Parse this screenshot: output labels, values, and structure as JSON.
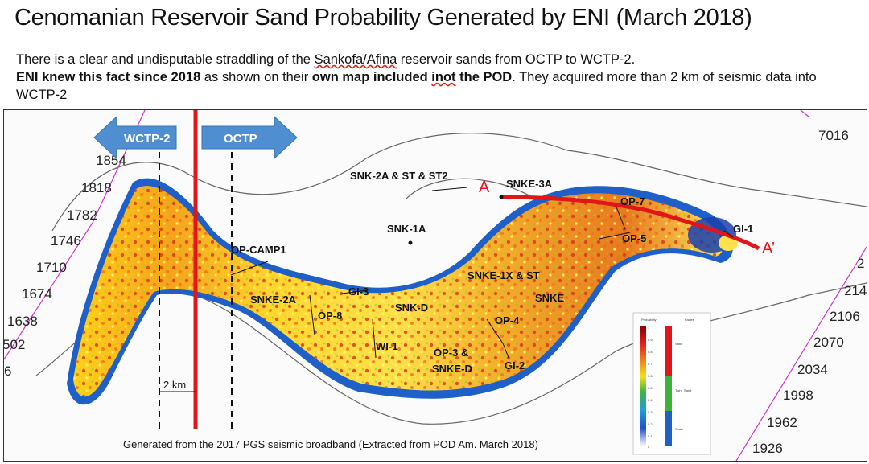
{
  "title": "Cenomanian Reservoir Sand Probability Generated by ENI (March 2018)",
  "description": {
    "line1_pre": "There is a clear and undisputable straddling of the ",
    "line1_link": "Sankofa/Afina",
    "line1_post": " reservoir sands from OCTP to WCTP-2.",
    "line2_bold1": "ENI knew this fact since 2018",
    "line2_mid": " as shown on their ",
    "line2_bold2a": "own map included ",
    "line2_bold2b": "inot",
    "line2_bold2c": " the POD",
    "line2_post": ".  They acquired more than 2 km of seismic data into WCTP-2"
  },
  "blocks": {
    "left_arrow": "WCTP-2",
    "right_arrow": "OCTP",
    "distance": "2 km"
  },
  "section": {
    "start": "A",
    "end": "A’"
  },
  "contours_left": [
    "1854",
    "1818",
    "1782",
    "1746",
    "1710",
    "1674",
    "1638",
    "502",
    "6"
  ],
  "contours_right": [
    "7016",
    "2",
    "214",
    "2106",
    "2070",
    "2034",
    "1998",
    "1962",
    "1926"
  ],
  "wells": [
    "SNK-2A & ST & ST2",
    "SNKE-3A",
    "OP-7",
    "GI-1",
    "OP-5",
    "SNK-1A",
    "OP-CAMP1",
    "SNKE-1X & ST",
    "SNKE",
    "SNKE-2A",
    "GI-3",
    "SNK-D",
    "OP-8",
    "OP-4",
    "WI-1",
    "OP-3 &",
    "SNKE-D",
    "GI-2"
  ],
  "legend": {
    "col1": "Probability",
    "col2": "Facies",
    "facies": [
      "Sand",
      "Tight_Sand",
      "Shaly"
    ],
    "ticks": [
      "1",
      "0.9",
      "0.8",
      "0.7",
      "0.6",
      "0.5",
      "0.4",
      "0.3",
      "0.2",
      "0.1",
      "0"
    ]
  },
  "footer": "Generated from the 2017 PGS seismic broadband (Extracted from POD Am. March 2018)",
  "colors": {
    "fault_red": "#e0161b",
    "arrow_blue": "#4f8ed0",
    "contour_magenta": "#cc33cc"
  }
}
